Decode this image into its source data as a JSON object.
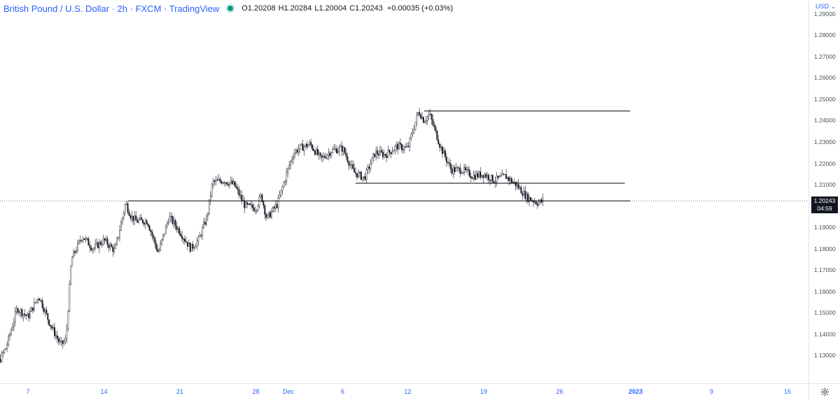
{
  "legend": {
    "title": "British Pound / U.S. Dollar · 2h · FXCM · TradingView",
    "open_label": "O",
    "open": "1.20208",
    "high_label": "H",
    "high": "1.20284",
    "low_label": "L",
    "low": "1.20004",
    "close_label": "C",
    "close": "1.20243",
    "change": "+0.00035 (+0.03%)",
    "status_color": "#089981"
  },
  "price_axis": {
    "currency": "USD",
    "ticks": [
      "1.29000",
      "1.28000",
      "1.27000",
      "1.26000",
      "1.25000",
      "1.24000",
      "1.23000",
      "1.22000",
      "1.21000",
      "1.20000",
      "1.19000",
      "1.18000",
      "1.17000",
      "1.16000",
      "1.15000",
      "1.14000",
      "1.13000"
    ],
    "current_price": "1.20243",
    "countdown": "04:59"
  },
  "time_axis": {
    "ticks": [
      {
        "label": "7",
        "bold": false
      },
      {
        "label": "14",
        "bold": false
      },
      {
        "label": "21",
        "bold": false
      },
      {
        "label": "28",
        "bold": false
      },
      {
        "label": "Dec",
        "bold": false
      },
      {
        "label": "6",
        "bold": false
      },
      {
        "label": "12",
        "bold": false
      },
      {
        "label": "19",
        "bold": false
      },
      {
        "label": "26",
        "bold": false
      },
      {
        "label": "2023",
        "bold": true
      },
      {
        "label": "9",
        "bold": false
      },
      {
        "label": "16",
        "bold": false
      }
    ]
  },
  "chart_data": {
    "type": "line",
    "style": "candlestick",
    "symbol": "GBPUSD",
    "interval": "2h",
    "ylim": [
      1.122,
      1.2965
    ],
    "x_unit": "day (Nov 2022 = 1..30, Dec 2022 = 31..61, Jan 2023 = 62..)",
    "x_ticks_days": [
      7,
      14,
      21,
      28,
      31,
      36,
      42,
      49,
      56,
      63,
      70,
      77
    ],
    "x": [
      3.0,
      4.0,
      5.0,
      6.0,
      7.0,
      8.0,
      9.0,
      10.0,
      10.5,
      11.0,
      12.0,
      13.0,
      14.0,
      15.0,
      16.0,
      16.5,
      17.0,
      18.0,
      19.0,
      20.0,
      21.0,
      22.0,
      22.7,
      23.0,
      23.5,
      24.0,
      25.0,
      26.0,
      27.0,
      28.0,
      28.5,
      29.0,
      30.0,
      31.0,
      31.5,
      32.0,
      33.0,
      34.0,
      35.0,
      36.0,
      37.0,
      38.0,
      39.0,
      40.0,
      41.0,
      42.0,
      43.0,
      43.5,
      44.0,
      45.0,
      46.0,
      47.0,
      48.0,
      49.0,
      50.0,
      51.0,
      52.0,
      53.0,
      54.0,
      54.5
    ],
    "series": [
      {
        "name": "GBPUSD",
        "values": [
          1.141,
          1.124,
          1.134,
          1.152,
          1.148,
          1.158,
          1.145,
          1.135,
          1.137,
          1.175,
          1.186,
          1.18,
          1.184,
          1.179,
          1.2015,
          1.195,
          1.193,
          1.193,
          1.178,
          1.195,
          1.188,
          1.18,
          1.184,
          1.188,
          1.195,
          1.211,
          1.212,
          1.21,
          1.2,
          1.199,
          1.205,
          1.194,
          1.201,
          1.218,
          1.225,
          1.227,
          1.229,
          1.222,
          1.226,
          1.227,
          1.216,
          1.213,
          1.225,
          1.224,
          1.228,
          1.227,
          1.2445,
          1.24,
          1.243,
          1.228,
          1.217,
          1.217,
          1.214,
          1.215,
          1.212,
          1.214,
          1.21,
          1.204,
          1.2015,
          1.2024
        ]
      }
    ],
    "horizontal_levels": [
      {
        "price": 1.2445,
        "from_x": 43.5,
        "to_x": 62.5
      },
      {
        "price": 1.2107,
        "from_x": 37.2,
        "to_x": 62.0
      },
      {
        "price": 1.2024,
        "from_x": 16.2,
        "to_x": 62.5
      }
    ],
    "last_price": 1.20243,
    "grid": false,
    "colors": {
      "candle": "#131722",
      "level_line": "#000000"
    }
  }
}
